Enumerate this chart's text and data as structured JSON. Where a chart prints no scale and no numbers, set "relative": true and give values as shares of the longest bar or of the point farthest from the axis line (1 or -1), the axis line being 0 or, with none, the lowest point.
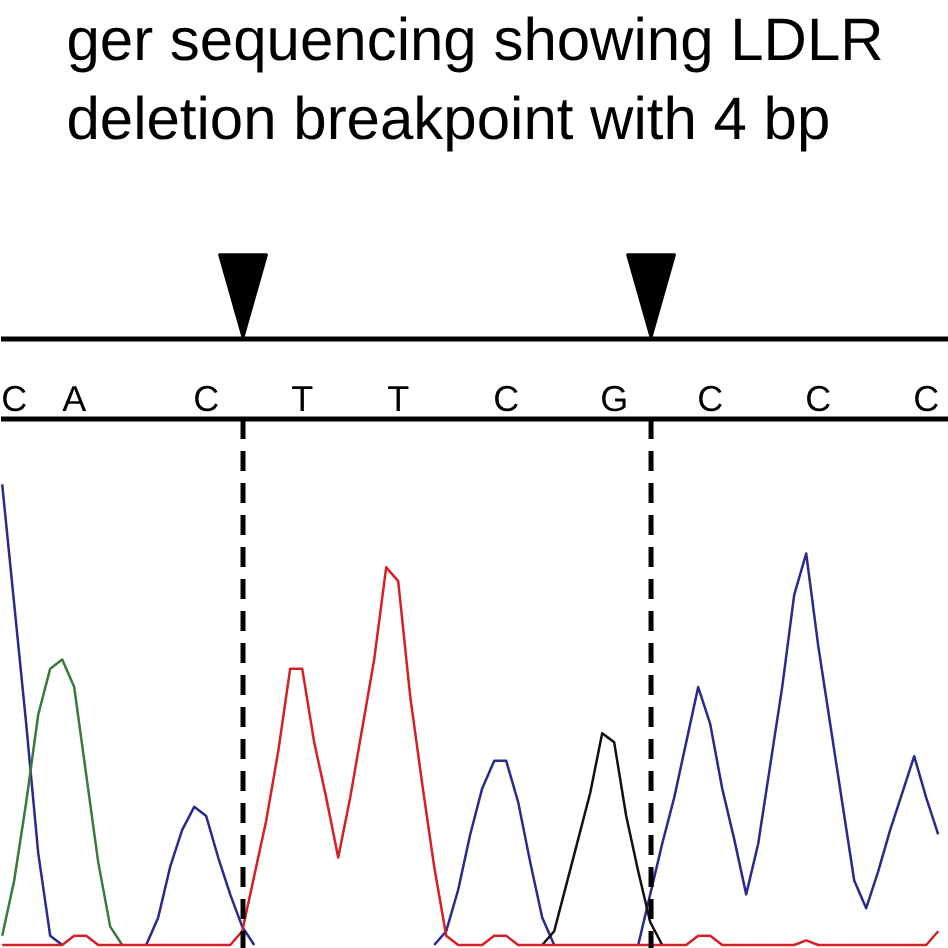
{
  "chart_data": {
    "type": "line",
    "relative": true,
    "title": "ger sequencing showing LDLR\ndeletion breakpoint with 4 bp",
    "categories": [
      null,
      "C",
      null,
      null,
      null,
      null,
      "A",
      null,
      null,
      null,
      null,
      null,
      null,
      null,
      null,
      null,
      null,
      "C",
      null,
      null,
      null,
      null,
      null,
      null,
      null,
      "T",
      null,
      null,
      null,
      null,
      null,
      null,
      null,
      "T",
      null,
      null,
      null,
      null,
      null,
      null,
      null,
      null,
      "C",
      null,
      null,
      null,
      null,
      null,
      null,
      null,
      null,
      "G",
      null,
      null,
      null,
      null,
      null,
      null,
      null,
      "C",
      null,
      null,
      null,
      null,
      null,
      null,
      null,
      null,
      "C",
      null,
      null,
      null,
      null,
      null,
      null,
      null,
      null,
      "C",
      null
    ],
    "series": [
      {
        "color": "#2a2a8c",
        "values": [
          1.0,
          0.74,
          0.48,
          0.2,
          0.02,
          0,
          null,
          null,
          null,
          null,
          null,
          null,
          0,
          0.06,
          0.17,
          0.25,
          0.3,
          0.28,
          0.19,
          0.11,
          0.04,
          0,
          null,
          null,
          null,
          null,
          null,
          null,
          null,
          null,
          null,
          null,
          null,
          null,
          null,
          null,
          0,
          0.03,
          0.12,
          0.24,
          0.34,
          0.4,
          0.4,
          0.31,
          0.18,
          0.06,
          0,
          null,
          null,
          null,
          null,
          null,
          null,
          0,
          0.11,
          0.22,
          0.32,
          0.44,
          0.56,
          0.48,
          0.34,
          0.23,
          0.11,
          0.22,
          0.39,
          0.56,
          0.76,
          0.85,
          0.65,
          0.48,
          0.31,
          0.14,
          0.08,
          0.16,
          0.25,
          0.33,
          0.41,
          0.32,
          0.24
        ]
      },
      {
        "color": "#3a7a3a",
        "values": [
          0.02,
          0.14,
          0.31,
          0.5,
          0.6,
          0.62,
          0.56,
          0.37,
          0.18,
          0.04,
          0,
          null,
          null,
          null,
          null,
          null,
          null,
          null,
          null,
          null,
          null,
          null,
          null,
          null,
          null,
          null,
          null,
          null,
          null,
          null,
          null,
          null,
          null,
          null,
          null,
          null,
          null,
          null,
          null,
          null,
          null,
          null,
          null,
          null,
          null,
          null,
          null,
          null,
          null,
          null,
          null,
          null,
          null,
          null,
          null,
          null,
          null,
          null,
          null,
          null,
          null,
          null,
          null,
          null,
          null,
          null,
          null,
          null,
          null,
          null,
          null,
          null,
          null,
          null,
          null,
          null,
          null,
          null,
          null
        ]
      },
      {
        "color": "#111111",
        "values": [
          null,
          null,
          null,
          null,
          null,
          null,
          null,
          null,
          null,
          null,
          null,
          null,
          null,
          null,
          null,
          null,
          null,
          null,
          null,
          null,
          null,
          null,
          null,
          null,
          null,
          null,
          null,
          null,
          null,
          null,
          null,
          null,
          null,
          null,
          null,
          null,
          null,
          null,
          null,
          null,
          null,
          null,
          null,
          null,
          null,
          0,
          0.03,
          0.13,
          0.23,
          0.33,
          0.46,
          0.44,
          0.28,
          0.16,
          0.05,
          0,
          null,
          null,
          null,
          null,
          null,
          null,
          null,
          null,
          null,
          null,
          null,
          null,
          null,
          null,
          null,
          null,
          null,
          null,
          null,
          null,
          null,
          null,
          null
        ]
      },
      {
        "color": "#d42026",
        "values": [
          0,
          0,
          0,
          0,
          0,
          0,
          0.02,
          0.02,
          0,
          0,
          0,
          0,
          0,
          0,
          0,
          0,
          0,
          0,
          0,
          0,
          0.03,
          0.15,
          0.27,
          0.42,
          0.6,
          0.6,
          0.44,
          0.32,
          0.19,
          0.32,
          0.47,
          0.62,
          0.82,
          0.79,
          0.54,
          0.35,
          0.17,
          0.02,
          0,
          0,
          0,
          0.02,
          0.02,
          0,
          0,
          0,
          0,
          0,
          0,
          0,
          0,
          0,
          0,
          0,
          0,
          0,
          0,
          0,
          0.02,
          0.02,
          0,
          0,
          0,
          0,
          0,
          0,
          0,
          0.01,
          0,
          0,
          0,
          0,
          0,
          0,
          0,
          0,
          0,
          0,
          0.03
        ]
      }
    ]
  }
}
